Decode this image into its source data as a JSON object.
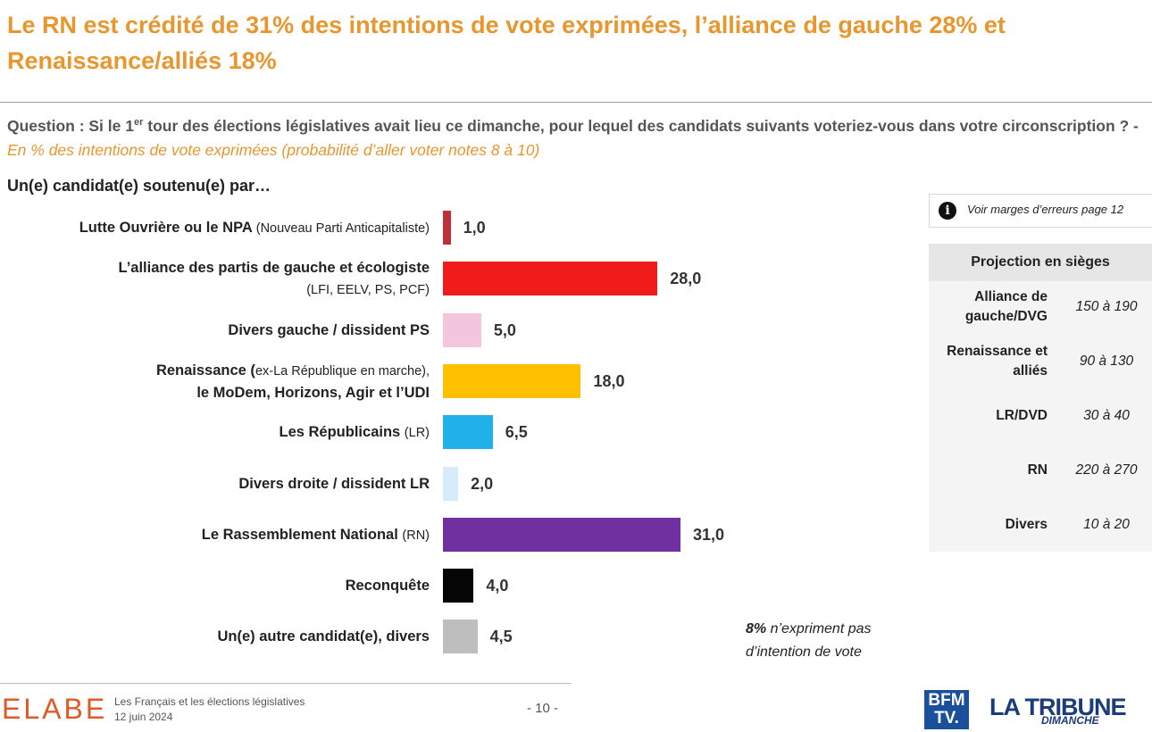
{
  "title": "Le RN est crédité de 31% des intentions de vote exprimées, l’alliance de gauche 28% et Renaissance/alliés 18%",
  "question": {
    "prefix": "Question : Si le 1",
    "sup": "er",
    "body": " tour des élections législatives avait lieu ce dimanche, pour lequel des candidats suivants voteriez-vous dans votre circonscription ? - ",
    "note": "En % des intentions de vote exprimées (probabilité d’aller voter notes 8 à 10)"
  },
  "subheading": "Un(e) candidat(e) soutenu(e) par…",
  "rows": [
    {
      "label_main": "Lutte Ouvrière ou le NPA ",
      "label_light": "(Nouveau Parti Anticapitaliste)",
      "label_line2": "",
      "value_text": "1,0"
    },
    {
      "label_main": "L’alliance des partis de gauche et écologiste",
      "label_light": "",
      "label_line2": "(LFI, EELV, PS, PCF)",
      "value_text": "28,0"
    },
    {
      "label_main": "Divers gauche / dissident PS",
      "label_light": "",
      "label_line2": "",
      "value_text": "5,0"
    },
    {
      "label_main": "Renaissance (",
      "label_light": "ex-La République en marche),",
      "label_line2": "le MoDem, Horizons, Agir et l’UDI",
      "value_text": "18,0"
    },
    {
      "label_main": "Les Républicains ",
      "label_light": "(LR)",
      "label_line2": "",
      "value_text": "6,5"
    },
    {
      "label_main": "Divers droite / dissident LR",
      "label_light": "",
      "label_line2": "",
      "value_text": "2,0"
    },
    {
      "label_main": "Le Rassemblement National ",
      "label_light": "(RN)",
      "label_line2": "",
      "value_text": "31,0"
    },
    {
      "label_main": "Reconquête",
      "label_light": "",
      "label_line2": "",
      "value_text": "4,0"
    },
    {
      "label_main": "Un(e) autre candidat(e), divers",
      "label_light": "",
      "label_line2": "",
      "value_text": "4,5"
    }
  ],
  "chart_data": {
    "type": "bar",
    "orientation": "horizontal",
    "title": "Le RN est crédité de 31% des intentions de vote exprimées, l’alliance de gauche 28% et Renaissance/alliés 18%",
    "categories": [
      "Lutte Ouvrière ou le NPA (Nouveau Parti Anticapitaliste)",
      "L’alliance des partis de gauche et écologiste (LFI, EELV, PS, PCF)",
      "Divers gauche / dissident PS",
      "Renaissance (ex-La République en marche), le MoDem, Horizons, Agir et l’UDI",
      "Les Républicains (LR)",
      "Divers droite / dissident LR",
      "Le Rassemblement National (RN)",
      "Reconquête",
      "Un(e) autre candidat(e), divers"
    ],
    "values": [
      1.0,
      28.0,
      5.0,
      18.0,
      6.5,
      2.0,
      31.0,
      4.0,
      4.5
    ],
    "colors": [
      "#C0303A",
      "#F01C1C",
      "#F4C6DE",
      "#FFC000",
      "#22B0EA",
      "#D6ECFA",
      "#7030A0",
      "#050505",
      "#BEBEBE"
    ],
    "xlim": [
      0,
      31
    ],
    "grid": false,
    "legend": "none"
  },
  "info": {
    "icon": "info-icon",
    "text": "Voir marges d’erreurs page 12"
  },
  "seats": {
    "header": "Projection en sièges",
    "rows": [
      {
        "label_line1": "Alliance de",
        "label_line2": "gauche/DVG",
        "value": "150 à 190"
      },
      {
        "label_line1": "Renaissance et",
        "label_line2": "alliés",
        "value": "90 à 130"
      },
      {
        "label_line1": "LR/DVD",
        "label_line2": "",
        "value": "30 à 40"
      },
      {
        "label_line1": "RN",
        "label_line2": "",
        "value": "220 à 270"
      },
      {
        "label_line1": "Divers",
        "label_line2": "",
        "value": "10 à 20"
      }
    ]
  },
  "note": {
    "bold": "8%",
    "line1_rest": " n’expriment pas",
    "line2": "d’intention de vote"
  },
  "footer": {
    "brand": "ELABE",
    "study": "Les Français et les élections législatives",
    "date": "12 juin 2024",
    "page": "- 10 -",
    "bfm_line1": "BFM",
    "bfm_line2": "TV.",
    "tribune": "LA TRIBUNE",
    "tribune_sub": "DIMANCHE"
  }
}
